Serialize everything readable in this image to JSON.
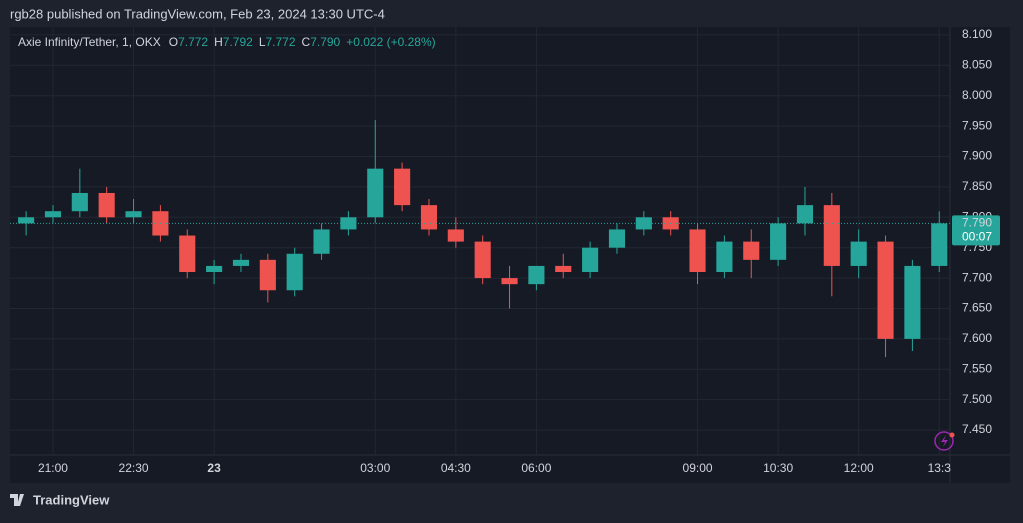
{
  "header": "rgb28 published on TradingView.com, Feb 23, 2024 13:30 UTC-4",
  "footer": "TradingView",
  "chart_data": {
    "type": "candlestick",
    "legend": {
      "symbol": "Axie Infinity/Tether, 1, OKX",
      "open": {
        "label": "O",
        "value": "7.772"
      },
      "high": {
        "label": "H",
        "value": "7.792"
      },
      "low": {
        "label": "L",
        "value": "7.772"
      },
      "close": {
        "label": "C",
        "value": "7.790"
      },
      "change": "+0.022 (+0.28%)"
    },
    "x": [
      20.5,
      21,
      21.5,
      22,
      22.5,
      23,
      23.5,
      24,
      24.5,
      25,
      25.5,
      26,
      26.5,
      27,
      27.5,
      28,
      28.5,
      29,
      29.5,
      30,
      30.5,
      31,
      31.5,
      32,
      32.5,
      33,
      33.5,
      34,
      34.5,
      35,
      35.5,
      36,
      36.5,
      37,
      37.5
    ],
    "open": [
      7.79,
      7.8,
      7.81,
      7.84,
      7.8,
      7.81,
      7.77,
      7.71,
      7.72,
      7.73,
      7.68,
      7.74,
      7.78,
      7.8,
      7.88,
      7.82,
      7.78,
      7.76,
      7.7,
      7.69,
      7.72,
      7.71,
      7.75,
      7.78,
      7.8,
      7.78,
      7.71,
      7.76,
      7.73,
      7.79,
      7.82,
      7.72,
      7.76,
      7.6,
      7.72
    ],
    "high": [
      7.81,
      7.82,
      7.88,
      7.85,
      7.83,
      7.82,
      7.78,
      7.73,
      7.74,
      7.74,
      7.75,
      7.79,
      7.81,
      7.96,
      7.89,
      7.83,
      7.8,
      7.77,
      7.72,
      7.72,
      7.74,
      7.76,
      7.79,
      7.81,
      7.81,
      7.79,
      7.77,
      7.78,
      7.8,
      7.85,
      7.84,
      7.78,
      7.77,
      7.73,
      7.81
    ],
    "low": [
      7.77,
      7.79,
      7.8,
      7.79,
      7.79,
      7.76,
      7.7,
      7.69,
      7.71,
      7.66,
      7.67,
      7.73,
      7.77,
      7.79,
      7.81,
      7.77,
      7.75,
      7.69,
      7.65,
      7.68,
      7.7,
      7.7,
      7.74,
      7.77,
      7.77,
      7.69,
      7.7,
      7.7,
      7.72,
      7.77,
      7.67,
      7.7,
      7.57,
      7.58,
      7.71
    ],
    "close": [
      7.8,
      7.81,
      7.84,
      7.8,
      7.81,
      7.77,
      7.71,
      7.72,
      7.73,
      7.68,
      7.74,
      7.78,
      7.8,
      7.88,
      7.82,
      7.78,
      7.76,
      7.7,
      7.69,
      7.72,
      7.71,
      7.75,
      7.78,
      7.8,
      7.78,
      7.71,
      7.76,
      7.73,
      7.79,
      7.82,
      7.72,
      7.76,
      7.6,
      7.72,
      7.79
    ],
    "up_color": "#26a69a",
    "down_color": "#ef5350",
    "xlim": [
      20.2,
      37.7
    ],
    "xticks": [
      {
        "value": 21,
        "label": "21:00"
      },
      {
        "value": 22.5,
        "label": "22:30"
      },
      {
        "value": 24,
        "label": "23"
      },
      {
        "value": 27,
        "label": "03:00"
      },
      {
        "value": 28.5,
        "label": "04:30"
      },
      {
        "value": 30,
        "label": "06:00"
      },
      {
        "value": 33,
        "label": "09:00"
      },
      {
        "value": 34.5,
        "label": "10:30"
      },
      {
        "value": 36,
        "label": "12:00"
      },
      {
        "value": 37.5,
        "label": "13:3"
      }
    ],
    "ylim": [
      7.409,
      8.113
    ],
    "yticks": [
      {
        "value": 8.1,
        "label": "8.100"
      },
      {
        "value": 8.05,
        "label": "8.050"
      },
      {
        "value": 8.0,
        "label": "8.000"
      },
      {
        "value": 7.95,
        "label": "7.950"
      },
      {
        "value": 7.9,
        "label": "7.900"
      },
      {
        "value": 7.85,
        "label": "7.850"
      },
      {
        "value": 7.8,
        "label": "7.800"
      },
      {
        "value": 7.75,
        "label": "7.750"
      },
      {
        "value": 7.7,
        "label": "7.700"
      },
      {
        "value": 7.65,
        "label": "7.650"
      },
      {
        "value": 7.6,
        "label": "7.600"
      },
      {
        "value": 7.55,
        "label": "7.550"
      },
      {
        "value": 7.5,
        "label": "7.500"
      },
      {
        "value": 7.45,
        "label": "7.450"
      }
    ],
    "last_price": {
      "value": 7.79,
      "label": "7.790"
    },
    "countdown": "00:07",
    "grid": true
  }
}
